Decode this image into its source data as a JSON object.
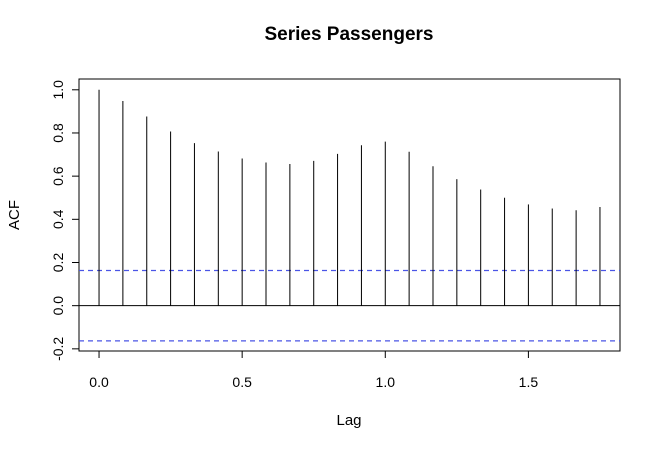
{
  "chart_data": {
    "type": "bar",
    "title": "Series  Passengers",
    "xlabel": "Lag",
    "ylabel": "ACF",
    "xlim": [
      -0.07,
      1.82
    ],
    "ylim": [
      -0.21,
      1.05
    ],
    "x_ticks": [
      "0.0",
      "0.5",
      "1.0",
      "1.5"
    ],
    "y_ticks": [
      "-0.2",
      "0.0",
      "0.2",
      "0.4",
      "0.6",
      "0.8",
      "1.0"
    ],
    "lags": [
      0.0,
      0.0833,
      0.1667,
      0.25,
      0.3333,
      0.4167,
      0.5,
      0.5833,
      0.6667,
      0.75,
      0.8333,
      0.9167,
      1.0,
      1.0833,
      1.1667,
      1.25,
      1.3333,
      1.4167,
      1.5,
      1.5833,
      1.6667,
      1.75
    ],
    "acf": [
      1.0,
      0.948,
      0.876,
      0.807,
      0.753,
      0.714,
      0.682,
      0.663,
      0.656,
      0.671,
      0.703,
      0.743,
      0.76,
      0.713,
      0.646,
      0.586,
      0.538,
      0.5,
      0.469,
      0.45,
      0.442,
      0.457
    ],
    "confidence_bound": 0.163,
    "grid": false,
    "colors": {
      "spike": "#000000",
      "confidence": "#4a55e6",
      "zero_line": "#000000",
      "frame": "#000000"
    }
  }
}
